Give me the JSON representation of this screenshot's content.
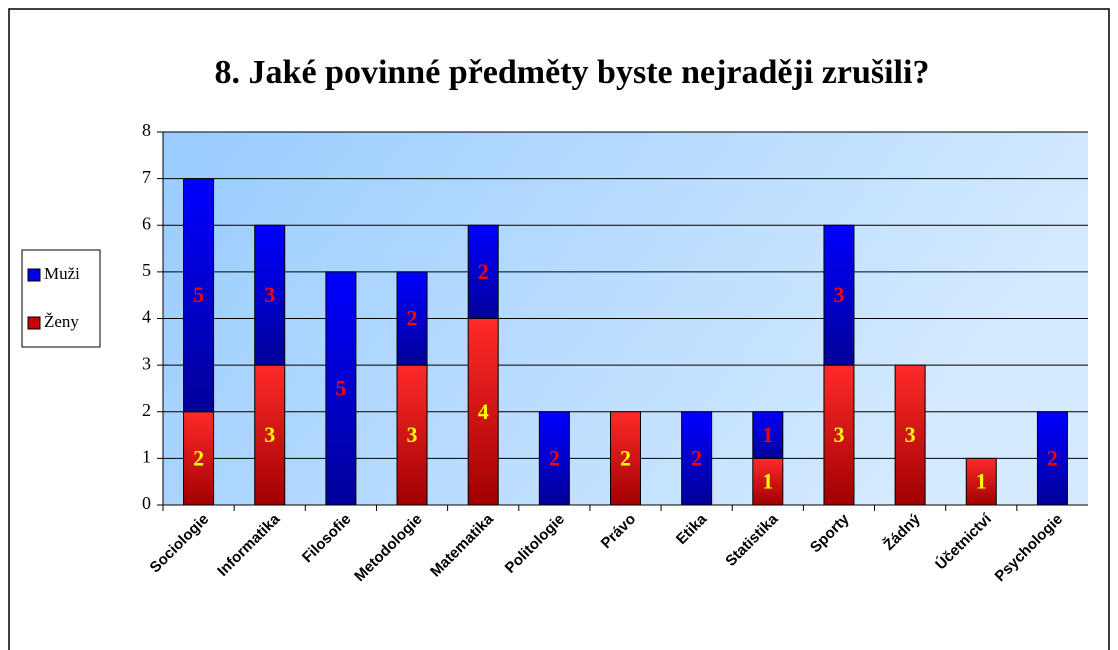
{
  "chart_data": {
    "type": "stacked_bar",
    "title": "8. Jaké povinné předměty byste nejraději zrušili?",
    "categories": [
      "Sociologie",
      "Informatika",
      "Filosofie",
      "Metodologie",
      "Matematika",
      "Politologie",
      "Právo",
      "Etika",
      "Statistika",
      "Sporty",
      "Žádný",
      "Účetnictví",
      "Psychologie"
    ],
    "series": [
      {
        "name": "Ženy",
        "color": "#cc0000",
        "values": [
          2,
          3,
          0,
          3,
          4,
          0,
          2,
          0,
          1,
          3,
          3,
          1,
          0
        ]
      },
      {
        "name": "Muži",
        "color": "#0000ee",
        "values": [
          5,
          3,
          5,
          2,
          2,
          2,
          0,
          2,
          1,
          3,
          0,
          0,
          2
        ]
      }
    ],
    "ylim": [
      0,
      8
    ],
    "yticks": [
      0,
      1,
      2,
      3,
      4,
      5,
      6,
      7,
      8
    ],
    "grid": true,
    "legend": "left"
  }
}
